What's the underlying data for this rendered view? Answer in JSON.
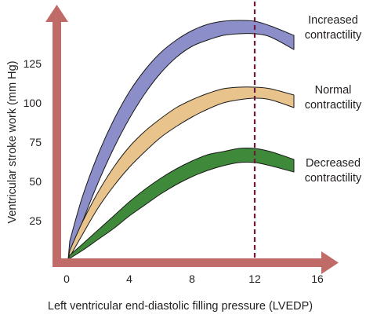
{
  "chart_data": {
    "type": "area",
    "title": "",
    "xlabel": "Left ventricular end-diastolic filling pressure (LVEDP)",
    "ylabel": "Ventricular stroke work (mm Hg)",
    "xlim": [
      0,
      16
    ],
    "ylim": [
      0,
      150
    ],
    "xticks": [
      0,
      4,
      8,
      12,
      16
    ],
    "yticks": [
      25,
      50,
      75,
      100,
      125
    ],
    "grid": false,
    "reference_line": {
      "x": 12,
      "style": "dashed",
      "color": "#6b1a3a"
    },
    "axis_color": "#c06b68",
    "series": [
      {
        "name_lines": [
          "Increased",
          "contractility"
        ],
        "color": "#8b8ec8",
        "x": [
          0.2,
          1,
          2,
          3,
          4,
          5,
          6,
          7,
          8,
          9,
          10,
          11,
          12,
          13,
          14.5
        ],
        "upper": [
          12,
          40,
          67,
          89,
          107,
          121,
          132,
          140,
          146,
          150,
          152,
          152.5,
          152,
          149,
          143
        ],
        "lower": [
          2,
          24,
          49,
          71,
          90,
          106,
          119,
          129,
          136,
          140,
          143,
          144,
          144,
          142,
          134
        ]
      },
      {
        "name_lines": [
          "Normal",
          "contractility"
        ],
        "color": "#e8c48c",
        "x": [
          0.2,
          1,
          2,
          3,
          4,
          5,
          6,
          7,
          8,
          9,
          10,
          11,
          12,
          13,
          14.5
        ],
        "upper": [
          6,
          24,
          43,
          59,
          72,
          82,
          90,
          97,
          102,
          106,
          109,
          110,
          110,
          109,
          105
        ],
        "lower": [
          2,
          16,
          33,
          47,
          59,
          69,
          78,
          85,
          91,
          96,
          100,
          102,
          103,
          102,
          97
        ]
      },
      {
        "name_lines": [
          "Decreased",
          "contractility"
        ],
        "color": "#3f8a3a",
        "x": [
          0.2,
          1,
          2,
          3,
          4,
          5,
          6,
          7,
          8,
          9,
          10,
          11,
          12,
          13,
          14.5
        ],
        "upper": [
          3,
          10,
          19,
          28,
          37,
          45,
          52,
          58,
          63,
          67,
          69,
          71,
          71,
          69,
          64
        ],
        "lower": [
          1,
          6,
          13,
          20,
          28,
          35,
          42,
          48,
          53,
          57,
          60,
          62,
          62,
          60,
          56
        ]
      }
    ]
  }
}
